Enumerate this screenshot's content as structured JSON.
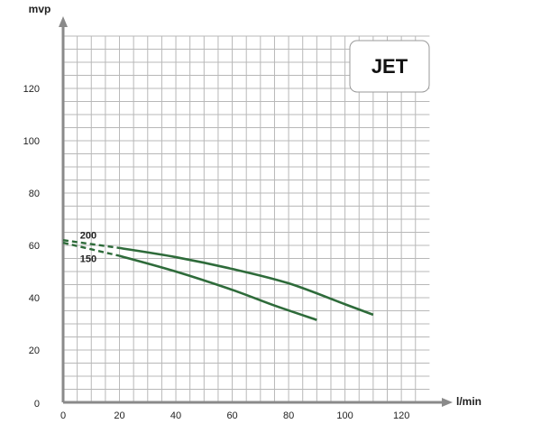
{
  "chart_data": {
    "type": "line",
    "title": "JET",
    "xlabel": "l/min",
    "ylabel": "mvp",
    "xlim": [
      0,
      130
    ],
    "ylim": [
      0,
      140
    ],
    "x_ticks": [
      0,
      20,
      40,
      60,
      80,
      100,
      120
    ],
    "y_ticks": [
      0,
      20,
      40,
      60,
      80,
      100,
      120
    ],
    "grid": true,
    "line_color": "#2e6b3a",
    "series": [
      {
        "name": "200",
        "x": [
          0,
          20,
          40,
          60,
          80,
          100,
          110
        ],
        "y": [
          62,
          59,
          55.5,
          51,
          45.5,
          37.5,
          33.5
        ],
        "dashed_until_x": 20
      },
      {
        "name": "150",
        "x": [
          0,
          20,
          40,
          60,
          75,
          90
        ],
        "y": [
          61,
          56,
          50,
          43,
          37,
          31.5
        ],
        "dashed_until_x": 20
      }
    ]
  }
}
